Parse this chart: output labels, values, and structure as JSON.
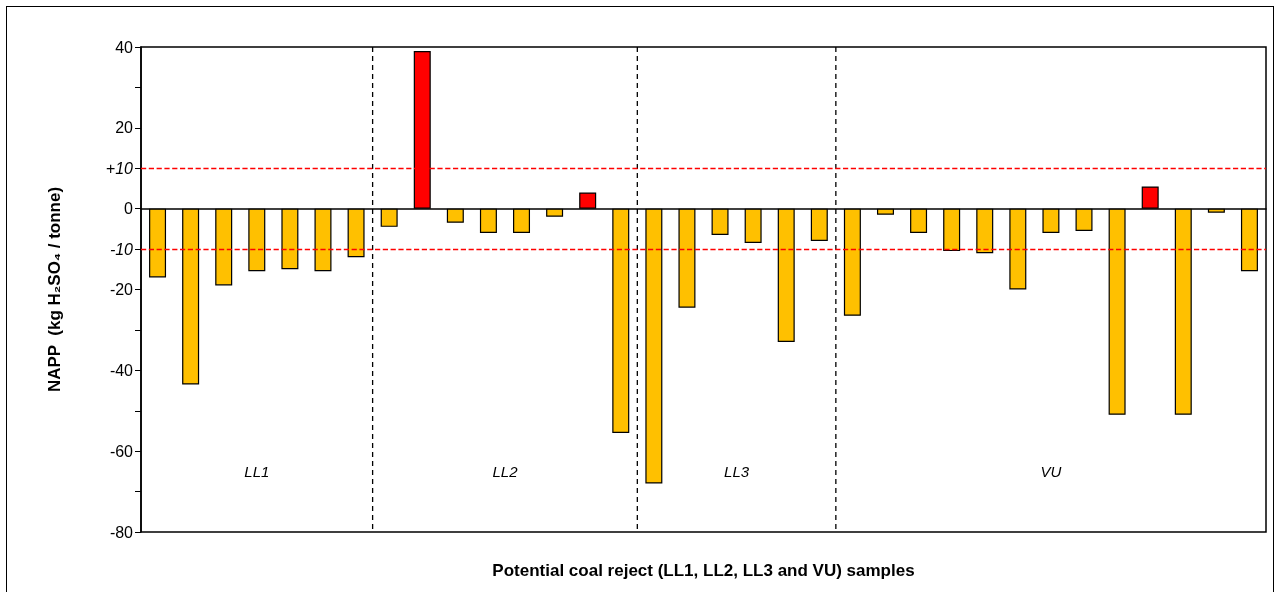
{
  "chart_data": {
    "type": "bar",
    "xlabel": "Potential coal reject (LL1, LL2, LL3 and VU) samples",
    "ylabel": "NAPP  (kg H₂SO₄ / tonne)",
    "categories": [
      null,
      null,
      null,
      null,
      null,
      null,
      null,
      null,
      null,
      null,
      null,
      null,
      null,
      null,
      null,
      null,
      null,
      null,
      null,
      null,
      null,
      null,
      null,
      null,
      null,
      null,
      null,
      null,
      null,
      null,
      null,
      null,
      null,
      null
    ],
    "values": [
      -17,
      -43.5,
      -19,
      -15.5,
      -15,
      -15.5,
      -12,
      -4.5,
      39,
      -3.5,
      -6,
      -6,
      -2,
      4,
      -55.5,
      -68,
      -24.5,
      -6.5,
      -8.5,
      -33,
      -8,
      -26.5,
      -1.5,
      -6,
      -10.5,
      -11,
      -20,
      -6,
      -5.5,
      -51,
      5.5,
      -51,
      -1,
      -15.5
    ],
    "colors": [
      "#ffc000",
      "#ffc000",
      "#ffc000",
      "#ffc000",
      "#ffc000",
      "#ffc000",
      "#ffc000",
      "#ffc000",
      "#ff0000",
      "#ffc000",
      "#ffc000",
      "#ffc000",
      "#ffc000",
      "#ff0000",
      "#ffc000",
      "#ffc000",
      "#ffc000",
      "#ffc000",
      "#ffc000",
      "#ffc000",
      "#ffc000",
      "#ffc000",
      "#ffc000",
      "#ffc000",
      "#ffc000",
      "#ffc000",
      "#ffc000",
      "#ffc000",
      "#ffc000",
      "#ffc000",
      "#ff0000",
      "#ffc000",
      "#ffc000",
      "#ffc000"
    ],
    "ylim": [
      -80,
      40
    ],
    "yticks": [
      40,
      {
        "value": 30,
        "label": null
      },
      20,
      {
        "value": 10,
        "label": null
      },
      0,
      {
        "value": -10,
        "label": null
      },
      -20,
      {
        "value": -30,
        "label": null
      },
      -40,
      {
        "value": -50,
        "label": null
      },
      -60,
      {
        "value": -70,
        "label": null
      },
      -80
    ],
    "ref_lines": [
      {
        "axis": "y",
        "value": 10,
        "label": "+10",
        "color": "#ff0000",
        "line_style": "dashed"
      },
      {
        "axis": "y",
        "value": -10,
        "label": "-10",
        "color": "#ff0000",
        "line_style": "dashed"
      }
    ],
    "annotations": [
      "LL1",
      "LL2",
      "LL3",
      "VU"
    ],
    "grid": false
  }
}
